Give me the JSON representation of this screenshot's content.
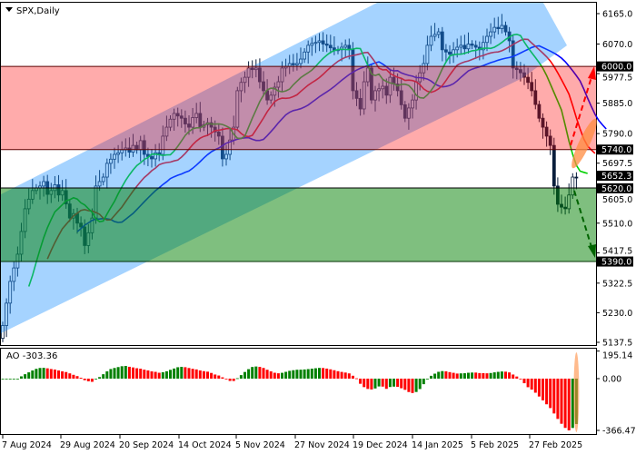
{
  "chart_data": {
    "type": "candlestick",
    "symbol_title": "SPX,Daily",
    "price_axis_ticks": [
      "6165.0",
      "6070.0",
      "5977.5",
      "5885.0",
      "5790.0",
      "5697.5",
      "5605.0",
      "5510.0",
      "5417.5",
      "5322.5",
      "5230.0",
      "5137.5"
    ],
    "ylim": [
      5137.5,
      6165.0
    ],
    "date_ticks": [
      "7 Aug 2024",
      "29 Aug 2024",
      "20 Sep 2024",
      "14 Oct 2024",
      "5 Nov 2024",
      "27 Nov 2024",
      "19 Dec 2024",
      "14 Jan 2025",
      "5 Feb 2025",
      "27 Feb 2025"
    ],
    "close": [
      5190,
      5260,
      5328,
      5370,
      5413,
      5484,
      5555,
      5585,
      5612,
      5620,
      5626,
      5640,
      5600,
      5612,
      5630,
      5598,
      5612,
      5570,
      5526,
      5540,
      5510,
      5498,
      5440,
      5480,
      5526,
      5626,
      5640,
      5654,
      5697,
      5710,
      5725,
      5730,
      5739,
      5745,
      5732,
      5753,
      5739,
      5768,
      5725,
      5718,
      5711,
      5730,
      5725,
      5782,
      5810,
      5835,
      5853,
      5845,
      5838,
      5820,
      5810,
      5840,
      5853,
      5810,
      5818,
      5824,
      5810,
      5795,
      5782,
      5711,
      5725,
      5770,
      5810,
      5924,
      5950,
      5966,
      5995,
      5990,
      5995,
      5952,
      5924,
      5895,
      5910,
      5935,
      5952,
      5995,
      6000,
      6009,
      6005,
      6009,
      6023,
      6045,
      6066,
      6072,
      6075,
      6080,
      6070,
      6066,
      6058,
      6050,
      6052,
      6060,
      6066,
      6052,
      5924,
      5900,
      5867,
      5952,
      5995,
      5895,
      5924,
      5930,
      5938,
      5910,
      5966,
      5945,
      5924,
      5880,
      5838,
      5870,
      5895,
      5952,
      5980,
      6009,
      6066,
      6094,
      6100,
      6108,
      6052,
      6045,
      6038,
      6052,
      6060,
      6066,
      6055,
      6070,
      6066,
      6060,
      6052,
      6075,
      6094,
      6108,
      6122,
      6118,
      6128,
      6108,
      6080,
      5995,
      5990,
      5980,
      5966,
      5950,
      5924,
      5881,
      5838,
      5810,
      5782,
      5753,
      5626,
      5569,
      5560,
      5555,
      5598,
      5654,
      5652
    ],
    "current_price": "5652.3",
    "levels": [
      {
        "label": "6000.0",
        "value": 6000.0,
        "role": "resistance"
      },
      {
        "label": "5740.0",
        "value": 5740.0,
        "role": "resistance"
      },
      {
        "label": "5620.0",
        "value": 5620.0,
        "role": "support"
      },
      {
        "label": "5390.0",
        "value": 5390.0,
        "role": "support"
      }
    ],
    "indicators": [
      "alligator"
    ],
    "colors": {
      "lips": "#00d000",
      "teeth": "#ff0000",
      "jaw": "#0000ff",
      "resistance_zone": "#ff0000",
      "support_zone": "#008000",
      "channel": "#1e90ff",
      "bull_scenario": "#ff0000",
      "bear_scenario": "#006400",
      "highlight": "#ff8c40"
    },
    "ao": {
      "title": "AO -303.36",
      "axis_ticks": [
        "195.14",
        "0.00",
        "-366.47"
      ],
      "ylim": [
        -366.47,
        195.14
      ],
      "up_color": "#008000",
      "down_color": "#ff0000"
    }
  }
}
